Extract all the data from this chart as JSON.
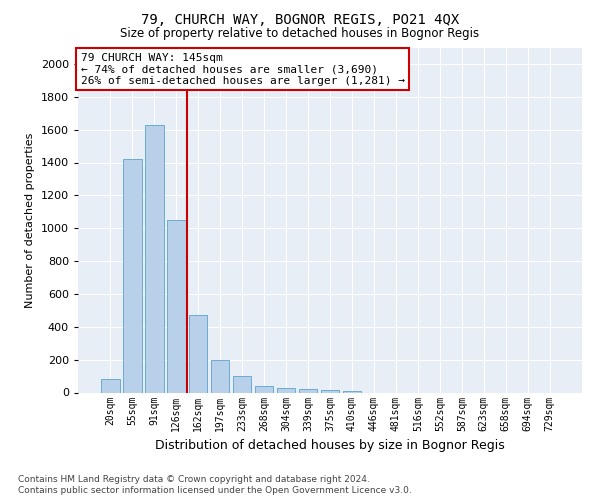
{
  "title1": "79, CHURCH WAY, BOGNOR REGIS, PO21 4QX",
  "title2": "Size of property relative to detached houses in Bognor Regis",
  "xlabel": "Distribution of detached houses by size in Bognor Regis",
  "ylabel": "Number of detached properties",
  "categories": [
    "20sqm",
    "55sqm",
    "91sqm",
    "126sqm",
    "162sqm",
    "197sqm",
    "233sqm",
    "268sqm",
    "304sqm",
    "339sqm",
    "375sqm",
    "410sqm",
    "446sqm",
    "481sqm",
    "516sqm",
    "552sqm",
    "587sqm",
    "623sqm",
    "658sqm",
    "694sqm",
    "729sqm"
  ],
  "values": [
    80,
    1420,
    1630,
    1050,
    470,
    200,
    100,
    40,
    30,
    20,
    15,
    10,
    0,
    0,
    0,
    0,
    0,
    0,
    0,
    0,
    0
  ],
  "bar_color": "#b8d0ea",
  "bar_edge_color": "#6aacd4",
  "vline_x": 3.5,
  "vline_color": "#cc0000",
  "annotation_text": "79 CHURCH WAY: 145sqm\n← 74% of detached houses are smaller (3,690)\n26% of semi-detached houses are larger (1,281) →",
  "annotation_box_color": "#ffffff",
  "annotation_box_edge": "#cc0000",
  "ylim": [
    0,
    2100
  ],
  "yticks": [
    0,
    200,
    400,
    600,
    800,
    1000,
    1200,
    1400,
    1600,
    1800,
    2000
  ],
  "background_color": "#e8eef6",
  "grid_color": "#ffffff",
  "footer1": "Contains HM Land Registry data © Crown copyright and database right 2024.",
  "footer2": "Contains public sector information licensed under the Open Government Licence v3.0."
}
